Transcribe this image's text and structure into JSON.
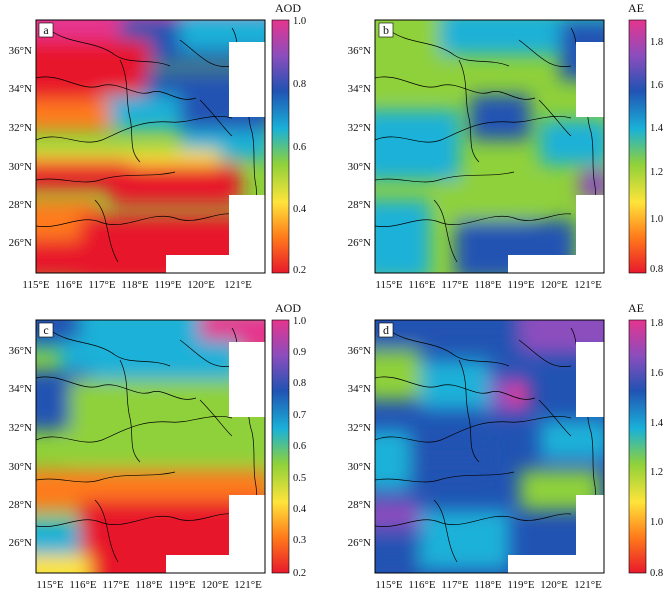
{
  "figure": {
    "panels": [
      {
        "id": "a",
        "label": "a",
        "colorbar": {
          "title": "AOD",
          "ticks": [
            "1.0",
            "0.8",
            "0.6",
            "0.4",
            "0.2"
          ],
          "range": [
            0.2,
            1.0
          ],
          "colors": [
            "#e8192c",
            "#ff7a1a",
            "#ffe43a",
            "#8fd13a",
            "#1ab1d8",
            "#2153b3",
            "#8c4dbd",
            "#e5358e"
          ]
        },
        "x_ticks": [
          "115°E",
          "116°E",
          "117°E",
          "118°E",
          "119°E",
          "120°E",
          "121°E"
        ],
        "y_ticks": [
          "36°N",
          "34°N",
          "32°N",
          "30°N",
          "28°N",
          "26°N"
        ]
      },
      {
        "id": "b",
        "label": "b",
        "colorbar": {
          "title": "AE",
          "ticks": [
            "1.8",
            "1.6",
            "1.4",
            "1.2",
            "1.0",
            "0.8"
          ],
          "range": [
            0.8,
            1.8
          ],
          "colors": [
            "#e8192c",
            "#ff7a1a",
            "#ffe43a",
            "#8fd13a",
            "#1ab1d8",
            "#2153b3",
            "#8c4dbd",
            "#e5358e"
          ]
        },
        "x_ticks": [
          "115°E",
          "116°E",
          "117°E",
          "118°E",
          "119°E",
          "120°E",
          "121°E"
        ],
        "y_ticks": [
          "36°N",
          "34°N",
          "32°N",
          "30°N",
          "28°N",
          "26°N"
        ]
      },
      {
        "id": "c",
        "label": "c",
        "colorbar": {
          "title": "AOD",
          "ticks": [
            "1.0",
            "0.9",
            "0.8",
            "0.7",
            "0.6",
            "0.5",
            "0.4",
            "0.3",
            "0.2"
          ],
          "range": [
            0.2,
            1.0
          ],
          "colors": [
            "#e8192c",
            "#ff7a1a",
            "#ffe43a",
            "#8fd13a",
            "#1ab1d8",
            "#2153b3",
            "#8c4dbd",
            "#e5358e"
          ]
        },
        "x_ticks": [
          "115°E",
          "116°E",
          "117°E",
          "118°E",
          "119°E",
          "120°E",
          "121°E"
        ],
        "y_ticks": [
          "36°N",
          "34°N",
          "32°N",
          "30°N",
          "28°N",
          "26°N"
        ]
      },
      {
        "id": "d",
        "label": "d",
        "colorbar": {
          "title": "AE",
          "ticks": [
            "1.8",
            "1.6",
            "1.4",
            "1.2",
            "1.0",
            "0.8"
          ],
          "range": [
            0.8,
            1.8
          ],
          "colors": [
            "#e8192c",
            "#ff7a1a",
            "#ffe43a",
            "#8fd13a",
            "#1ab1d8",
            "#2153b3",
            "#8c4dbd",
            "#e5358e"
          ]
        },
        "x_ticks": [
          "115°E",
          "116°E",
          "117°E",
          "118°E",
          "119°E",
          "120°E",
          "121°E"
        ],
        "y_ticks": [
          "36°N",
          "34°N",
          "32°N",
          "30°N",
          "28°N",
          "26°N"
        ]
      }
    ]
  }
}
